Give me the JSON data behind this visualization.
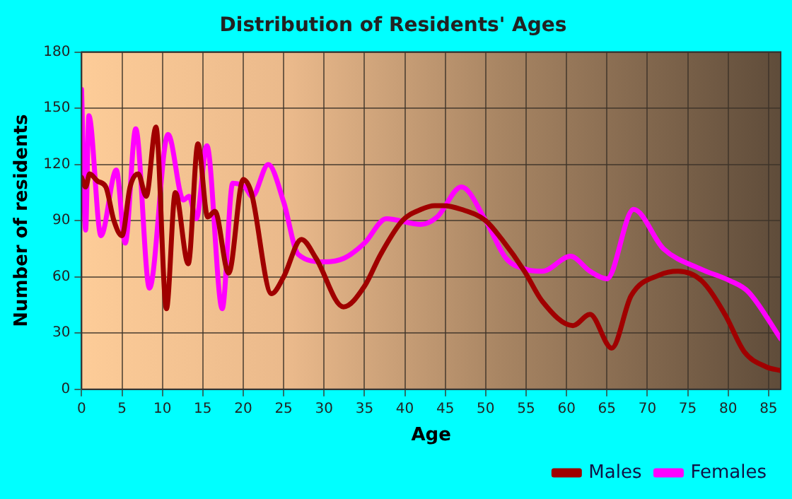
{
  "chart_data": {
    "type": "line",
    "title": "Distribution of Residents' Ages",
    "xlabel": "Age",
    "ylabel": "Number of residents",
    "xlim": [
      0,
      86.5
    ],
    "xticks": [
      0,
      5,
      10,
      15,
      20,
      25,
      30,
      35,
      40,
      45,
      50,
      55,
      60,
      65,
      70,
      75,
      80,
      85
    ],
    "ylim": [
      0,
      180
    ],
    "yticks": [
      0,
      30,
      60,
      90,
      120,
      150,
      180
    ],
    "grid": true,
    "legend": "bottom right",
    "marker": "none",
    "line_style": "solid",
    "series": [
      {
        "name": "Males",
        "color": "#a00000",
        "x": [
          0,
          0.5,
          1,
          2,
          3,
          4,
          5,
          6,
          7,
          8,
          9.2,
          10.5,
          11.6,
          13.2,
          14.4,
          15.6,
          16.5,
          18.2,
          20,
          21,
          23.5,
          25,
          27.2,
          29,
          32.4,
          35,
          37,
          39.7,
          42,
          43.7,
          44.7,
          47,
          50,
          52,
          54.8,
          57,
          60.8,
          62.9,
          65.6,
          68,
          71.5,
          73.8,
          76.7,
          79.6,
          82,
          84.7,
          86.5
        ],
        "values": [
          113,
          108,
          115,
          111,
          108,
          90,
          82,
          108,
          115,
          103,
          140,
          43,
          105,
          67,
          131,
          92,
          95,
          62,
          112,
          105,
          51,
          60,
          80,
          70,
          44,
          55,
          72,
          90,
          96,
          98,
          98,
          96,
          90,
          80,
          63,
          47,
          34,
          40,
          22,
          50,
          61,
          63,
          58,
          40,
          20,
          12,
          10
        ]
      },
      {
        "name": "Females",
        "color": "#ff00ff",
        "x": [
          0,
          0.5,
          0.9,
          2.4,
          4.3,
          5.4,
          6.7,
          8.4,
          10.7,
          12.6,
          13.3,
          14.2,
          15.5,
          17.4,
          18.7,
          20.2,
          21.1,
          23.1,
          25,
          26.8,
          30,
          32.5,
          35,
          37.7,
          42,
          44,
          47,
          50,
          52.5,
          55,
          57,
          60.5,
          62.9,
          65,
          68.3,
          72,
          76.7,
          80.2,
          82.5,
          86.5
        ],
        "values": [
          160,
          85,
          146,
          82,
          117,
          78,
          139,
          54,
          136,
          101,
          103,
          91,
          130,
          43,
          110,
          108,
          103,
          120,
          100,
          72,
          68,
          70,
          78,
          91,
          88,
          92,
          108,
          90,
          70,
          64,
          63,
          71,
          63,
          59,
          96,
          75,
          64,
          58,
          52,
          27
        ]
      }
    ]
  }
}
